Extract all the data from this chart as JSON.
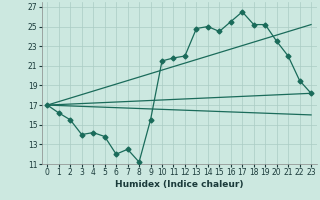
{
  "xlabel": "Humidex (Indice chaleur)",
  "background_color": "#cce8e0",
  "grid_color": "#aaccC4",
  "line_color": "#1a6b5a",
  "xlim": [
    -0.5,
    23.5
  ],
  "ylim": [
    11,
    27.5
  ],
  "yticks": [
    11,
    13,
    15,
    17,
    19,
    21,
    23,
    25,
    27
  ],
  "xticks": [
    0,
    1,
    2,
    3,
    4,
    5,
    6,
    7,
    8,
    9,
    10,
    11,
    12,
    13,
    14,
    15,
    16,
    17,
    18,
    19,
    20,
    21,
    22,
    23
  ],
  "series1_x": [
    0,
    1,
    2,
    3,
    4,
    5,
    6,
    7,
    8,
    9,
    10,
    11,
    12,
    13,
    14,
    15,
    16,
    17,
    18,
    19,
    20,
    21,
    22,
    23
  ],
  "series1_y": [
    17.0,
    16.2,
    15.5,
    14.0,
    14.2,
    13.8,
    12.0,
    12.5,
    11.2,
    15.5,
    21.5,
    21.8,
    22.0,
    24.8,
    25.0,
    24.5,
    25.5,
    26.5,
    25.2,
    25.2,
    23.5,
    22.0,
    19.5,
    18.2
  ],
  "series2_x": [
    0,
    23
  ],
  "series2_y": [
    17.0,
    25.2
  ],
  "series3_x": [
    0,
    23
  ],
  "series3_y": [
    17.0,
    18.2
  ],
  "series4_x": [
    0,
    23
  ],
  "series4_y": [
    17.0,
    16.0
  ],
  "marker_size": 2.5,
  "line_width": 0.9
}
